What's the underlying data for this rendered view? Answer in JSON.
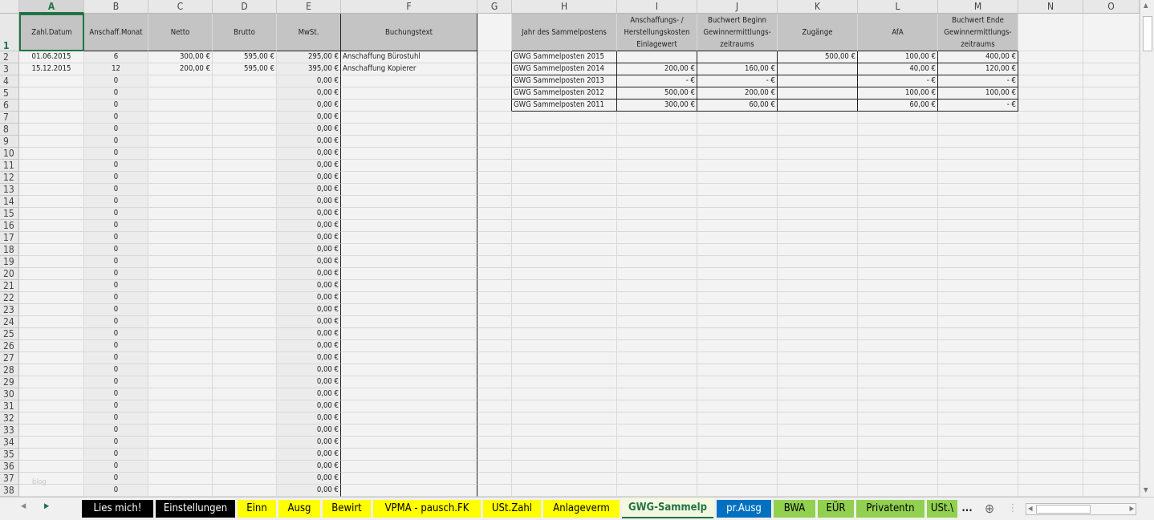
{
  "columns": [
    "A",
    "B",
    "C",
    "D",
    "E",
    "F",
    "G",
    "H",
    "I",
    "J",
    "K",
    "L",
    "M",
    "N",
    "O"
  ],
  "selected_column": "A",
  "left_table": {
    "headers": [
      "Zahl.Datum",
      "Anschaff.Monat",
      "Netto",
      "Brutto",
      "MwSt.",
      "Buchungstext"
    ],
    "rows": [
      [
        "01.06.2015",
        "6",
        "300,00 €",
        "595,00 €",
        "295,00 €",
        "Anschaffung Bürostuhl"
      ],
      [
        "15.12.2015",
        "12",
        "200,00 €",
        "595,00 €",
        "395,00 €",
        "Anschaffung Kopierer"
      ]
    ],
    "empty_row_values": {
      "monat": "0",
      "mwst": "0,00 €"
    }
  },
  "right_table": {
    "headers": [
      "Jahr des Sammelpostens",
      "Anschaffungs- / Herstellungskosten Einlagewert",
      "Buchwert Beginn Gewinnermittlungs-zeitraums",
      "Zugänge",
      "AfA",
      "Buchwert Ende Gewinnermittlungs-zeitraums"
    ],
    "rows": [
      [
        "GWG Sammelposten 2015",
        "",
        "",
        "500,00 €",
        "100,00 €",
        "400,00 €"
      ],
      [
        "GWG Sammelposten 2014",
        "200,00 €",
        "160,00 €",
        "",
        "40,00 €",
        "120,00 €"
      ],
      [
        "GWG Sammelposten 2013",
        "-    €",
        "-    €",
        "",
        "-    €",
        "-    €"
      ],
      [
        "GWG Sammelposten 2012",
        "500,00 €",
        "200,00 €",
        "",
        "100,00 €",
        "100,00 €"
      ],
      [
        "GWG Sammelposten 2011",
        "300,00 €",
        "60,00 €",
        "",
        "60,00 €",
        "-    €"
      ]
    ]
  },
  "row_count": 38,
  "watermark": "blog",
  "sheet_tabs": [
    {
      "label": "Lies mich!",
      "bg": "#000000",
      "fg": "#ffffff"
    },
    {
      "label": "Einstellungen",
      "bg": "#000000",
      "fg": "#ffffff"
    },
    {
      "label": "Einn",
      "bg": "#ffff00",
      "fg": "#000000"
    },
    {
      "label": "Ausg",
      "bg": "#ffff00",
      "fg": "#000000"
    },
    {
      "label": "Bewirt",
      "bg": "#ffff00",
      "fg": "#000000"
    },
    {
      "label": "VPMA - pausch.FK",
      "bg": "#ffff00",
      "fg": "#000000"
    },
    {
      "label": "USt.Zahl",
      "bg": "#ffff00",
      "fg": "#000000"
    },
    {
      "label": "Anlageverm",
      "bg": "#ffff00",
      "fg": "#000000"
    },
    {
      "label": "GWG-Sammelp",
      "bg": "#f4f8e0",
      "fg": "#217346",
      "active": true
    },
    {
      "label": "pr.Ausg",
      "bg": "#0070c0",
      "fg": "#ffffff"
    },
    {
      "label": "BWA",
      "bg": "#92d050",
      "fg": "#000000"
    },
    {
      "label": "EÜR",
      "bg": "#92d050",
      "fg": "#000000"
    },
    {
      "label": "Privatentn",
      "bg": "#92d050",
      "fg": "#000000"
    },
    {
      "label": "USt.\\",
      "bg": "#92d050",
      "fg": "#000000"
    }
  ],
  "more_tabs": "...",
  "add_sheet_icon": "plus-circle-icon",
  "accent": "#217346"
}
